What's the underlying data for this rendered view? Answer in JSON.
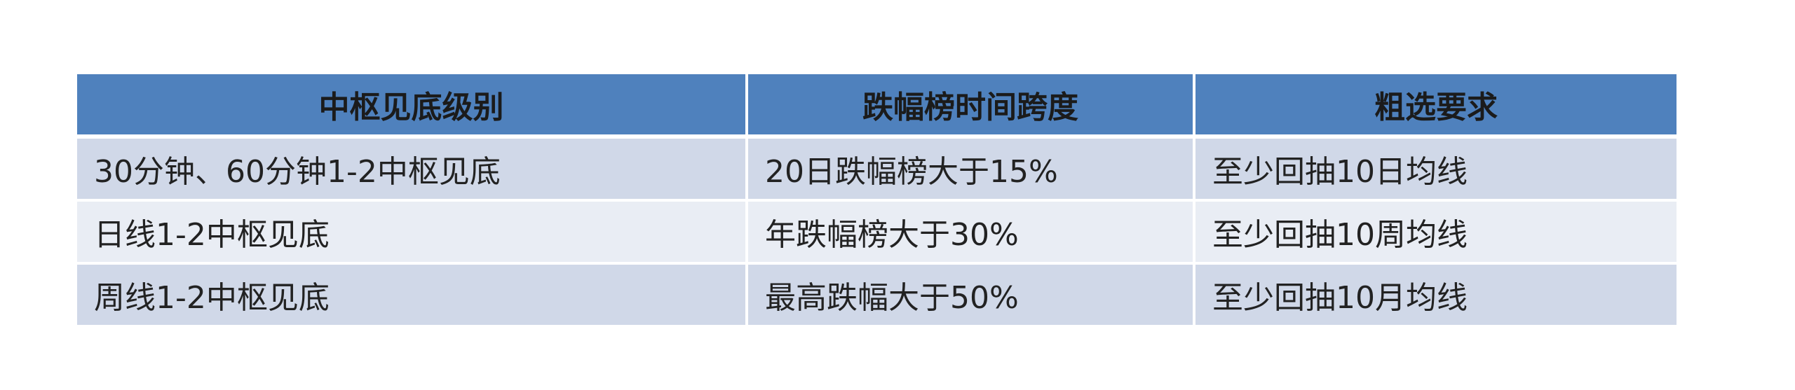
{
  "table": {
    "headers": [
      "中枢见底级别",
      "跌幅榜时间跨度",
      "粗选要求"
    ],
    "rows": [
      [
        "30分钟、60分钟1-2中枢见底",
        "20日跌幅榜大于15%",
        "至少回抽10日均线"
      ],
      [
        "日线1-2中枢见底",
        "年跌幅榜大于30%",
        "至少回抽10周均线"
      ],
      [
        "周线1-2中枢见底",
        "最高跌幅大于50%",
        "至少回抽10月均线"
      ]
    ]
  },
  "colors": {
    "header_bg": "#4f81bd",
    "row_odd_bg": "#d0d8e8",
    "row_even_bg": "#e9edf4"
  }
}
